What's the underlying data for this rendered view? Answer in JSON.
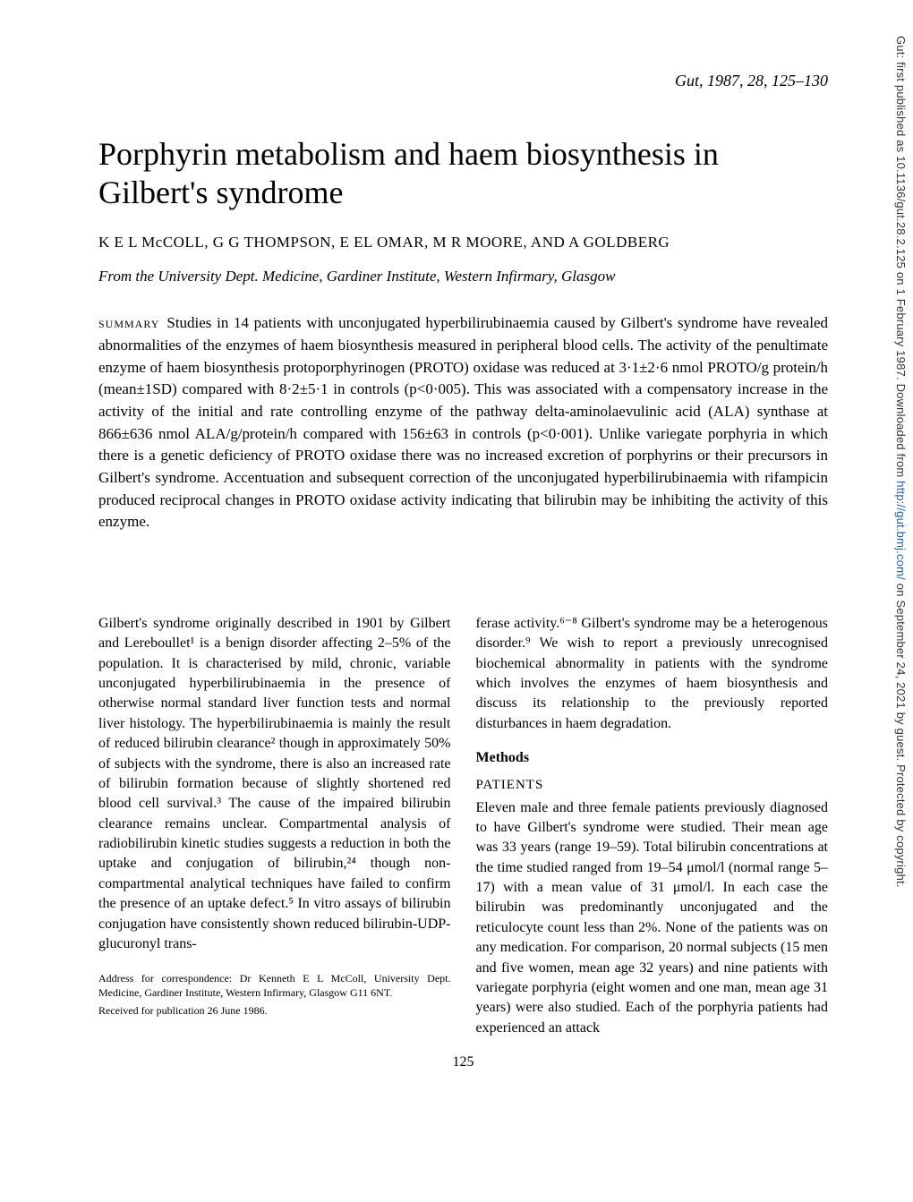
{
  "journal_ref": "Gut, 1987, 28, 125–130",
  "title": "Porphyrin metabolism and haem biosynthesis in Gilbert's syndrome",
  "authors": "K E L McCOLL, G G THOMPSON, E EL OMAR, M R MOORE, AND A GOLDBERG",
  "affiliation": "From the University Dept. Medicine, Gardiner Institute, Western Infirmary, Glasgow",
  "summary_label": "summary",
  "summary_text": "Studies in 14 patients with unconjugated hyperbilirubinaemia caused by Gilbert's syndrome have revealed abnormalities of the enzymes of haem biosynthesis measured in peripheral blood cells. The activity of the penultimate enzyme of haem biosynthesis protoporphyrinogen (PROTO) oxidase was reduced at 3·1±2·6 nmol PROTO/g protein/h (mean±1SD) compared with 8·2±5·1 in controls (p<0·005). This was associated with a compensatory increase in the activity of the initial and rate controlling enzyme of the pathway delta-aminolaevulinic acid (ALA) synthase at 866±636 nmol ALA/g/protein/h compared with 156±63 in controls (p<0·001). Unlike variegate porphyria in which there is a genetic deficiency of PROTO oxidase there was no increased excretion of porphyrins or their precursors in Gilbert's syndrome. Accentuation and subsequent correction of the unconjugated hyperbilirubinaemia with rifampicin produced reciprocal changes in PROTO oxidase activity indicating that bilirubin may be inhibiting the activity of this enzyme.",
  "col_left": {
    "p1": "Gilbert's syndrome originally described in 1901 by Gilbert and Lereboullet¹ is a benign disorder affecting 2–5% of the population. It is characterised by mild, chronic, variable unconjugated hyperbilirubinaemia in the presence of otherwise normal standard liver function tests and normal liver histology. The hyperbilirubinaemia is mainly the result of reduced bilirubin clearance² though in approximately 50% of subjects with the syndrome, there is also an increased rate of bilirubin formation because of slightly shortened red blood cell survival.³ The cause of the impaired bilirubin clearance remains unclear. Compartmental analysis of radiobilirubin kinetic studies suggests a reduction in both the uptake and conjugation of bilirubin,²⁴ though non-compartmental analytical techniques have failed to confirm the presence of an uptake defect.⁵ In vitro assays of bilirubin conjugation have consistently shown reduced bilirubin-UDP-glucuronyl trans-",
    "footnote1": "Address for correspondence: Dr Kenneth E L McColl, University Dept. Medicine, Gardiner Institute, Western Infirmary, Glasgow G11 6NT.",
    "footnote2": "Received for publication 26 June 1986."
  },
  "col_right": {
    "p1": "ferase activity.⁶⁻⁸ Gilbert's syndrome may be a heterogenous disorder.⁹ We wish to report a previously unrecognised biochemical abnormality in patients with the syndrome which involves the enzymes of haem biosynthesis and discuss its relationship to the previously reported disturbances in haem degradation.",
    "methods_head": "Methods",
    "patients_head": "PATIENTS",
    "p2": "Eleven male and three female patients previously diagnosed to have Gilbert's syndrome were studied. Their mean age was 33 years (range 19–59). Total bilirubin concentrations at the time studied ranged from 19–54 μmol/l (normal range 5–17) with a mean value of 31 μmol/l. In each case the bilirubin was predominantly unconjugated and the reticulocyte count less than 2%. None of the patients was on any medication. For comparison, 20 normal subjects (15 men and five women, mean age 32 years) and nine patients with variegate porphyria (eight women and one man, mean age 31 years) were also studied. Each of the porphyria patients had experienced an attack"
  },
  "page_number": "125",
  "sidebar_text_pre": "Gut: first published as 10.1136/gut.28.2.125 on 1 February 1987. Downloaded from ",
  "sidebar_link": "http://gut.bmj.com/",
  "sidebar_text_post": " on September 24, 2021 by guest. Protected by copyright."
}
